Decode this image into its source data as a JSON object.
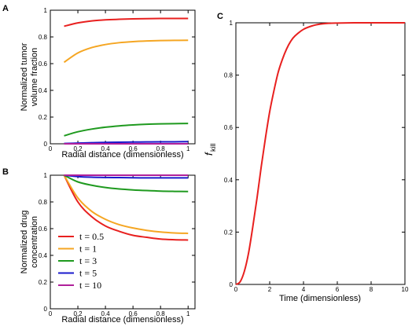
{
  "chart_data": [
    {
      "panel": "A",
      "type": "line",
      "xlabel": "Radial distance (dimensionless)",
      "ylabel": [
        "Normalized tumor",
        "volume fraction"
      ],
      "xlim": [
        0,
        1.05
      ],
      "ylim": [
        0,
        1
      ],
      "x_ticks": [
        "0",
        "0.2",
        "0.4",
        "0.6",
        "0.8",
        "1"
      ],
      "y_ticks": [
        "0",
        "0.2",
        "0.4",
        "0.6",
        "0.8",
        "1"
      ],
      "x": [
        0.1,
        0.2,
        0.3,
        0.4,
        0.5,
        0.6,
        0.7,
        0.8,
        0.9,
        1.0
      ],
      "series": [
        {
          "name": "t = 0.5",
          "color": "#e8201f",
          "values": [
            0.88,
            0.905,
            0.92,
            0.928,
            0.932,
            0.935,
            0.937,
            0.938,
            0.938,
            0.938
          ]
        },
        {
          "name": "t = 1",
          "color": "#f5a623",
          "values": [
            0.61,
            0.68,
            0.72,
            0.743,
            0.757,
            0.765,
            0.77,
            0.773,
            0.774,
            0.775
          ]
        },
        {
          "name": "t = 3",
          "color": "#1f9a1f",
          "values": [
            0.06,
            0.09,
            0.11,
            0.124,
            0.134,
            0.141,
            0.146,
            0.149,
            0.151,
            0.152
          ]
        },
        {
          "name": "t = 5",
          "color": "#1a1acc",
          "values": [
            0.002,
            0.005,
            0.008,
            0.01,
            0.012,
            0.013,
            0.014,
            0.015,
            0.015,
            0.016
          ]
        },
        {
          "name": "t = 10",
          "color": "#b0209a",
          "values": [
            0.0,
            0.0,
            0.0,
            0.0,
            0.0,
            0.0,
            0.0,
            0.0,
            0.0,
            0.0
          ]
        }
      ]
    },
    {
      "panel": "B",
      "type": "line",
      "xlabel": "Radial distance (dimensionless)",
      "ylabel": [
        "Normalized drug",
        "concentration"
      ],
      "xlim": [
        0,
        1.05
      ],
      "ylim": [
        0,
        1
      ],
      "x_ticks": [
        "0",
        "0.2",
        "0.4",
        "0.6",
        "0.8",
        "1"
      ],
      "y_ticks": [
        "0",
        "0.2",
        "0.4",
        "0.6",
        "0.8",
        "1"
      ],
      "legend_position": "lower-left",
      "x": [
        0.1,
        0.2,
        0.3,
        0.4,
        0.5,
        0.6,
        0.7,
        0.8,
        0.9,
        1.0
      ],
      "series": [
        {
          "name": "t = 0.5",
          "color": "#e8201f",
          "values": [
            1.0,
            0.8,
            0.69,
            0.62,
            0.58,
            0.55,
            0.535,
            0.522,
            0.517,
            0.515
          ]
        },
        {
          "name": "t = 1",
          "color": "#f5a623",
          "values": [
            1.0,
            0.83,
            0.73,
            0.67,
            0.63,
            0.605,
            0.587,
            0.575,
            0.568,
            0.565
          ]
        },
        {
          "name": "t = 3",
          "color": "#1f9a1f",
          "values": [
            1.0,
            0.95,
            0.925,
            0.908,
            0.897,
            0.89,
            0.885,
            0.881,
            0.879,
            0.878
          ]
        },
        {
          "name": "t = 5",
          "color": "#1a1acc",
          "values": [
            1.0,
            0.99,
            0.985,
            0.983,
            0.982,
            0.981,
            0.98,
            0.98,
            0.98,
            0.98
          ]
        },
        {
          "name": "t = 10",
          "color": "#b0209a",
          "values": [
            1.0,
            1.0,
            1.0,
            1.0,
            1.0,
            1.0,
            1.0,
            1.0,
            1.0,
            1.0
          ]
        }
      ]
    },
    {
      "panel": "C",
      "type": "line",
      "xlabel": "Time (dimensionless)",
      "ylabel": "f_kill",
      "ylabel_main": "f",
      "ylabel_sub": "kill",
      "xlim": [
        0,
        10
      ],
      "ylim": [
        0,
        1
      ],
      "x_ticks": [
        "0",
        "2",
        "4",
        "6",
        "8",
        "10"
      ],
      "y_ticks": [
        "0",
        "0.2",
        "0.4",
        "0.6",
        "0.8",
        "1"
      ],
      "x": [
        0,
        0.25,
        0.5,
        0.75,
        1,
        1.25,
        1.5,
        1.75,
        2,
        2.25,
        2.5,
        2.75,
        3,
        3.25,
        3.5,
        4,
        4.5,
        5,
        5.5,
        6,
        7,
        8,
        9,
        10
      ],
      "series": [
        {
          "name": "",
          "color": "#e8201f",
          "values": [
            0.0,
            0.01,
            0.05,
            0.12,
            0.22,
            0.33,
            0.45,
            0.56,
            0.66,
            0.74,
            0.81,
            0.86,
            0.9,
            0.93,
            0.95,
            0.975,
            0.988,
            0.995,
            0.998,
            0.999,
            1.0,
            1.0,
            1.0,
            1.0
          ]
        }
      ]
    }
  ]
}
